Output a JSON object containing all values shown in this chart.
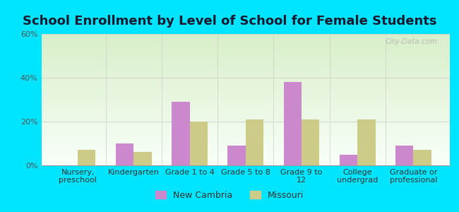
{
  "title": "School Enrollment by Level of School for Female Students",
  "categories": [
    "Nursery,\npreschool",
    "Kindergarten",
    "Grade 1 to 4",
    "Grade 5 to 8",
    "Grade 9 to\n12",
    "College\nundergrad",
    "Graduate or\nprofessional"
  ],
  "new_cambria": [
    0,
    10,
    29,
    9,
    38,
    5,
    9
  ],
  "missouri": [
    7,
    6,
    20,
    21,
    21,
    21,
    7
  ],
  "bar_color_nc": "#cc88cc",
  "bar_color_mo": "#cccc88",
  "background_outer": "#00e5ff",
  "background_inner_top": "#d8eec8",
  "background_inner_bottom": "#f8fff8",
  "ylim": [
    0,
    60
  ],
  "yticks": [
    0,
    20,
    40,
    60
  ],
  "ytick_labels": [
    "0%",
    "20%",
    "40%",
    "60%"
  ],
  "legend_nc": "New Cambria",
  "legend_mo": "Missouri",
  "title_fontsize": 13,
  "tick_fontsize": 8,
  "legend_fontsize": 9,
  "watermark": "City-Data.com"
}
